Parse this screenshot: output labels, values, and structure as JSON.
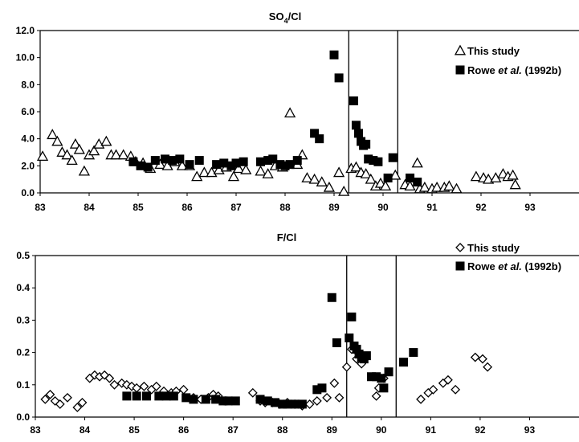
{
  "chart_data": [
    {
      "type": "scatter",
      "title": "SO4/Cl",
      "title_main": "SO",
      "title_sub": "4",
      "title_tail": "/Cl",
      "xlabel": "",
      "ylabel": "",
      "xlim": [
        83,
        94
      ],
      "ylim": [
        0,
        12
      ],
      "xticks": [
        "83",
        "84",
        "85",
        "86",
        "87",
        "88",
        "89",
        "90",
        "91",
        "92",
        "93"
      ],
      "yticks": [
        "0.0",
        "2.0",
        "4.0",
        "6.0",
        "8.0",
        "10.0",
        "12.0"
      ],
      "vlines": [
        89.3,
        90.3
      ],
      "legend_position": "top-right",
      "series": [
        {
          "name": "This study",
          "legend_plain": "This study",
          "legend_italic": "",
          "legend_tail": "",
          "marker": "triangle-open",
          "points": [
            [
              83.05,
              2.7
            ],
            [
              83.25,
              4.3
            ],
            [
              83.35,
              3.8
            ],
            [
              83.45,
              3.0
            ],
            [
              83.55,
              2.8
            ],
            [
              83.65,
              2.4
            ],
            [
              83.72,
              3.6
            ],
            [
              83.8,
              3.2
            ],
            [
              83.9,
              1.6
            ],
            [
              84.0,
              2.8
            ],
            [
              84.1,
              3.1
            ],
            [
              84.2,
              3.6
            ],
            [
              84.35,
              3.8
            ],
            [
              84.45,
              2.8
            ],
            [
              84.55,
              2.8
            ],
            [
              84.7,
              2.8
            ],
            [
              84.85,
              2.7
            ],
            [
              84.95,
              2.3
            ],
            [
              85.1,
              2.2
            ],
            [
              85.25,
              1.8
            ],
            [
              85.45,
              2.1
            ],
            [
              85.6,
              2.0
            ],
            [
              85.75,
              2.3
            ],
            [
              85.9,
              2.0
            ],
            [
              86.05,
              2.0
            ],
            [
              86.2,
              1.2
            ],
            [
              86.35,
              1.5
            ],
            [
              86.5,
              1.5
            ],
            [
              86.65,
              1.7
            ],
            [
              86.8,
              1.9
            ],
            [
              86.95,
              1.2
            ],
            [
              87.05,
              1.8
            ],
            [
              87.2,
              1.7
            ],
            [
              87.5,
              1.6
            ],
            [
              87.65,
              1.4
            ],
            [
              87.8,
              2.0
            ],
            [
              87.95,
              1.9
            ],
            [
              88.1,
              5.9
            ],
            [
              88.25,
              2.1
            ],
            [
              88.35,
              2.8
            ],
            [
              88.45,
              1.1
            ],
            [
              88.6,
              1.0
            ],
            [
              88.75,
              0.8
            ],
            [
              88.9,
              0.4
            ],
            [
              89.1,
              1.5
            ],
            [
              89.2,
              0.1
            ],
            [
              89.35,
              1.8
            ],
            [
              89.45,
              1.9
            ],
            [
              89.55,
              1.5
            ],
            [
              89.65,
              1.4
            ],
            [
              89.75,
              1.0
            ],
            [
              89.85,
              0.5
            ],
            [
              89.95,
              0.7
            ],
            [
              90.05,
              0.5
            ],
            [
              90.25,
              1.3
            ],
            [
              90.45,
              0.6
            ],
            [
              90.55,
              0.5
            ],
            [
              90.7,
              2.2
            ],
            [
              90.75,
              0.3
            ],
            [
              90.85,
              0.4
            ],
            [
              91.0,
              0.3
            ],
            [
              91.1,
              0.4
            ],
            [
              91.25,
              0.4
            ],
            [
              91.35,
              0.5
            ],
            [
              91.5,
              0.3
            ],
            [
              91.9,
              1.2
            ],
            [
              92.05,
              1.1
            ],
            [
              92.15,
              1.0
            ],
            [
              92.3,
              1.1
            ],
            [
              92.45,
              1.4
            ],
            [
              92.55,
              1.2
            ],
            [
              92.65,
              1.3
            ],
            [
              92.7,
              0.6
            ]
          ]
        },
        {
          "name": "Rowe et al. (1992b)",
          "legend_plain": "Rowe ",
          "legend_italic": "et al.",
          "legend_tail": " (1992b)",
          "marker": "square-filled",
          "points": [
            [
              84.9,
              2.3
            ],
            [
              85.05,
              2.0
            ],
            [
              85.2,
              1.9
            ],
            [
              85.35,
              2.4
            ],
            [
              85.55,
              2.5
            ],
            [
              85.7,
              2.4
            ],
            [
              85.85,
              2.5
            ],
            [
              86.05,
              2.1
            ],
            [
              86.25,
              2.4
            ],
            [
              86.6,
              2.1
            ],
            [
              86.75,
              2.2
            ],
            [
              86.9,
              2.0
            ],
            [
              87.0,
              2.2
            ],
            [
              87.15,
              2.3
            ],
            [
              87.5,
              2.3
            ],
            [
              87.65,
              2.4
            ],
            [
              87.75,
              2.5
            ],
            [
              87.9,
              2.1
            ],
            [
              88.0,
              2.0
            ],
            [
              88.1,
              2.1
            ],
            [
              88.25,
              2.4
            ],
            [
              88.6,
              4.4
            ],
            [
              88.7,
              4.0
            ],
            [
              89.0,
              10.2
            ],
            [
              89.1,
              8.5
            ],
            [
              89.4,
              6.8
            ],
            [
              89.45,
              5.0
            ],
            [
              89.5,
              4.4
            ],
            [
              89.55,
              3.8
            ],
            [
              89.6,
              3.5
            ],
            [
              89.65,
              3.6
            ],
            [
              89.7,
              2.5
            ],
            [
              89.8,
              2.4
            ],
            [
              89.9,
              2.3
            ],
            [
              90.1,
              1.1
            ],
            [
              90.2,
              2.6
            ],
            [
              90.55,
              1.1
            ],
            [
              90.7,
              0.8
            ]
          ]
        }
      ]
    },
    {
      "type": "scatter",
      "title": "F/Cl",
      "title_main": "F/Cl",
      "title_sub": "",
      "title_tail": "",
      "xlabel": "",
      "ylabel": "",
      "xlim": [
        83,
        94
      ],
      "ylim": [
        0,
        0.5
      ],
      "xticks": [
        "83",
        "84",
        "85",
        "86",
        "87",
        "88",
        "89",
        "90",
        "91",
        "92",
        "93"
      ],
      "yticks": [
        "0.0",
        "0.1",
        "0.2",
        "0.3",
        "0.4",
        "0.5"
      ],
      "vlines": [
        89.3,
        90.3
      ],
      "legend_position": "top-right",
      "series": [
        {
          "name": "This study",
          "legend_plain": "This study",
          "legend_italic": "",
          "legend_tail": "",
          "marker": "diamond-open",
          "points": [
            [
              83.2,
              0.055
            ],
            [
              83.3,
              0.07
            ],
            [
              83.4,
              0.05
            ],
            [
              83.5,
              0.04
            ],
            [
              83.65,
              0.06
            ],
            [
              83.85,
              0.03
            ],
            [
              83.95,
              0.045
            ],
            [
              84.1,
              0.12
            ],
            [
              84.2,
              0.13
            ],
            [
              84.3,
              0.125
            ],
            [
              84.4,
              0.13
            ],
            [
              84.5,
              0.12
            ],
            [
              84.6,
              0.1
            ],
            [
              84.75,
              0.105
            ],
            [
              84.85,
              0.1
            ],
            [
              84.95,
              0.095
            ],
            [
              85.05,
              0.09
            ],
            [
              85.2,
              0.095
            ],
            [
              85.35,
              0.085
            ],
            [
              85.45,
              0.095
            ],
            [
              85.6,
              0.08
            ],
            [
              85.75,
              0.075
            ],
            [
              85.85,
              0.08
            ],
            [
              86.0,
              0.085
            ],
            [
              86.2,
              0.06
            ],
            [
              86.35,
              0.055
            ],
            [
              86.5,
              0.06
            ],
            [
              86.6,
              0.07
            ],
            [
              86.7,
              0.065
            ],
            [
              86.85,
              0.05
            ],
            [
              87.4,
              0.075
            ],
            [
              87.55,
              0.05
            ],
            [
              87.65,
              0.045
            ],
            [
              87.8,
              0.045
            ],
            [
              87.95,
              0.04
            ],
            [
              88.1,
              0.045
            ],
            [
              88.25,
              0.04
            ],
            [
              88.4,
              0.035
            ],
            [
              88.55,
              0.04
            ],
            [
              88.7,
              0.05
            ],
            [
              88.9,
              0.06
            ],
            [
              89.05,
              0.105
            ],
            [
              89.15,
              0.06
            ],
            [
              89.3,
              0.155
            ],
            [
              89.4,
              0.21
            ],
            [
              89.5,
              0.18
            ],
            [
              89.55,
              0.195
            ],
            [
              89.6,
              0.165
            ],
            [
              89.9,
              0.065
            ],
            [
              89.95,
              0.09
            ],
            [
              90.05,
              0.12
            ],
            [
              90.8,
              0.055
            ],
            [
              90.95,
              0.075
            ],
            [
              91.05,
              0.085
            ],
            [
              91.25,
              0.105
            ],
            [
              91.35,
              0.115
            ],
            [
              91.5,
              0.085
            ],
            [
              91.9,
              0.185
            ],
            [
              92.05,
              0.18
            ],
            [
              92.15,
              0.155
            ]
          ]
        },
        {
          "name": "Rowe et al. (1992b)",
          "legend_plain": "Rowe ",
          "legend_italic": "et al.",
          "legend_tail": " (1992b)",
          "marker": "square-filled",
          "points": [
            [
              84.85,
              0.065
            ],
            [
              85.05,
              0.065
            ],
            [
              85.25,
              0.065
            ],
            [
              85.5,
              0.065
            ],
            [
              85.65,
              0.065
            ],
            [
              85.8,
              0.065
            ],
            [
              86.05,
              0.06
            ],
            [
              86.2,
              0.055
            ],
            [
              86.45,
              0.055
            ],
            [
              86.65,
              0.055
            ],
            [
              86.8,
              0.05
            ],
            [
              86.9,
              0.05
            ],
            [
              87.05,
              0.05
            ],
            [
              87.55,
              0.055
            ],
            [
              87.7,
              0.05
            ],
            [
              87.85,
              0.045
            ],
            [
              88.0,
              0.04
            ],
            [
              88.1,
              0.04
            ],
            [
              88.25,
              0.04
            ],
            [
              88.4,
              0.04
            ],
            [
              88.7,
              0.085
            ],
            [
              88.8,
              0.09
            ],
            [
              89.0,
              0.37
            ],
            [
              89.1,
              0.23
            ],
            [
              89.35,
              0.245
            ],
            [
              89.4,
              0.31
            ],
            [
              89.45,
              0.22
            ],
            [
              89.5,
              0.21
            ],
            [
              89.55,
              0.195
            ],
            [
              89.6,
              0.185
            ],
            [
              89.65,
              0.18
            ],
            [
              89.7,
              0.19
            ],
            [
              89.8,
              0.125
            ],
            [
              89.9,
              0.125
            ],
            [
              90.0,
              0.12
            ],
            [
              90.05,
              0.09
            ],
            [
              90.15,
              0.14
            ],
            [
              90.45,
              0.17
            ],
            [
              90.65,
              0.2
            ]
          ]
        }
      ]
    }
  ]
}
